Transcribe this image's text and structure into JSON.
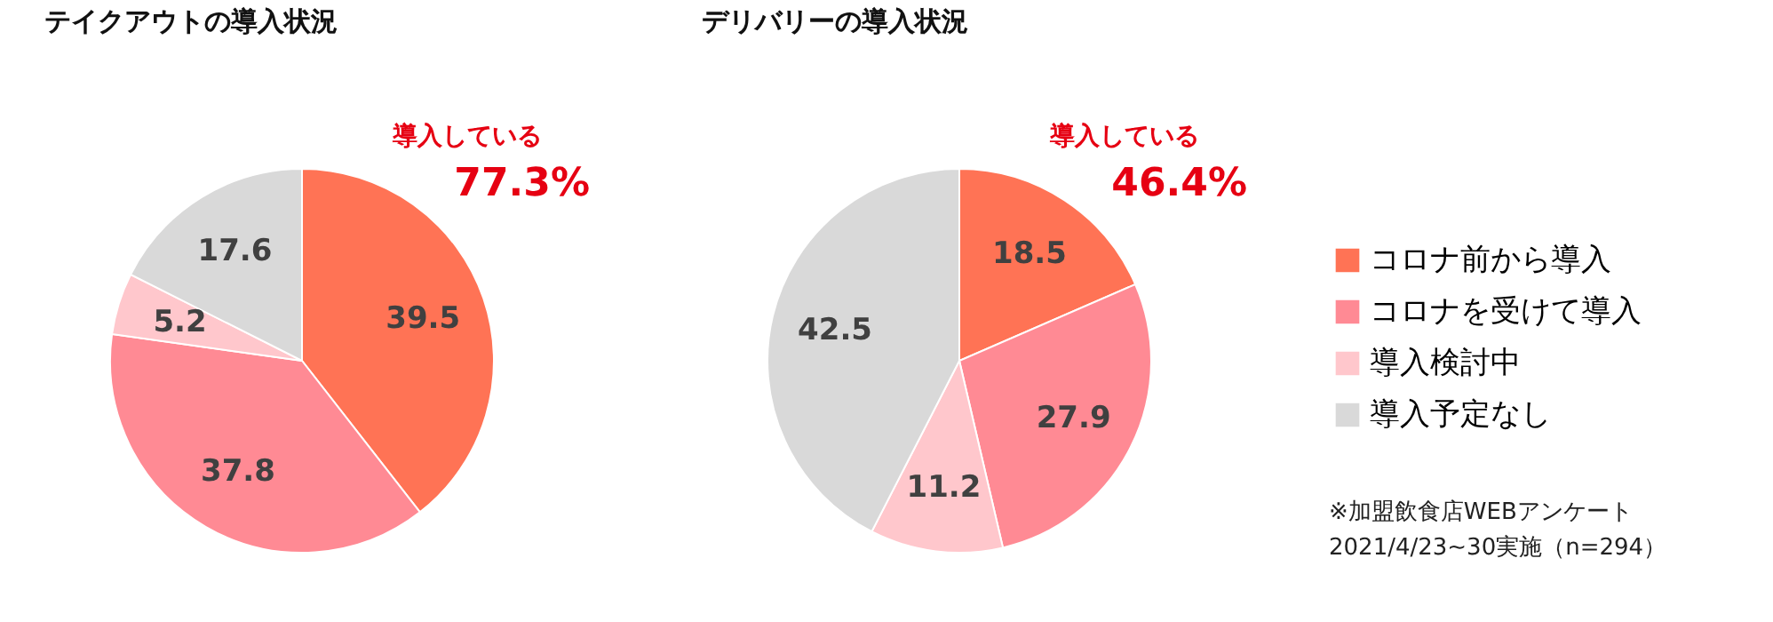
{
  "chart_data": [
    {
      "type": "pie",
      "title": "テイクアウトの導入状況",
      "categories": [
        "コロナ前から導入",
        "コロナを受けて導入",
        "導入検討中",
        "導入予定なし"
      ],
      "values": [
        39.5,
        37.8,
        5.2,
        17.6
      ],
      "colors": [
        "#ff7355",
        "#ff8a94",
        "#ffc7cc",
        "#d9d9d9"
      ],
      "data_labels": true,
      "legend": "right",
      "annotations": [
        "導入している",
        "77.3%"
      ]
    },
    {
      "type": "pie",
      "title": "デリバリーの導入状況",
      "categories": [
        null,
        null,
        null,
        null
      ],
      "values": [
        18.5,
        27.9,
        11.2,
        42.5
      ],
      "colors": [
        "#ff7355",
        "#ff8a94",
        "#ffc7cc",
        "#d9d9d9"
      ],
      "data_labels": true,
      "legend": false,
      "annotations": [
        "導入している",
        "46.4%",
        "※加盟飲食店WEBアンケート",
        "　2021/4/23~30実施（n=294）"
      ]
    }
  ]
}
